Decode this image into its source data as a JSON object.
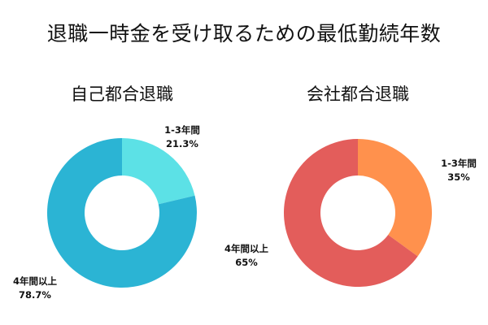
{
  "title": "退職一時金を受け取るための最低勤続年数",
  "chart_data": [
    {
      "type": "pie",
      "donut": true,
      "title": "自己都合退職",
      "categories": [
        "1-3年間",
        "4年間以上"
      ],
      "values": [
        21.3,
        78.7
      ],
      "colors": [
        "#5ce1e6",
        "#2bb4d4"
      ],
      "labels": {
        "a_name": "1-3年間",
        "a_value": "21.3%",
        "b_name": "4年間以上",
        "b_value": "78.7%"
      }
    },
    {
      "type": "pie",
      "donut": true,
      "title": "会社都合退職",
      "categories": [
        "1-3年間",
        "4年間以上"
      ],
      "values": [
        35,
        65
      ],
      "colors": [
        "#ff914d",
        "#e35d5b"
      ],
      "labels": {
        "a_name": "1-3年間",
        "a_value": "35%",
        "b_name": "4年間以上",
        "b_value": "65%"
      }
    }
  ]
}
